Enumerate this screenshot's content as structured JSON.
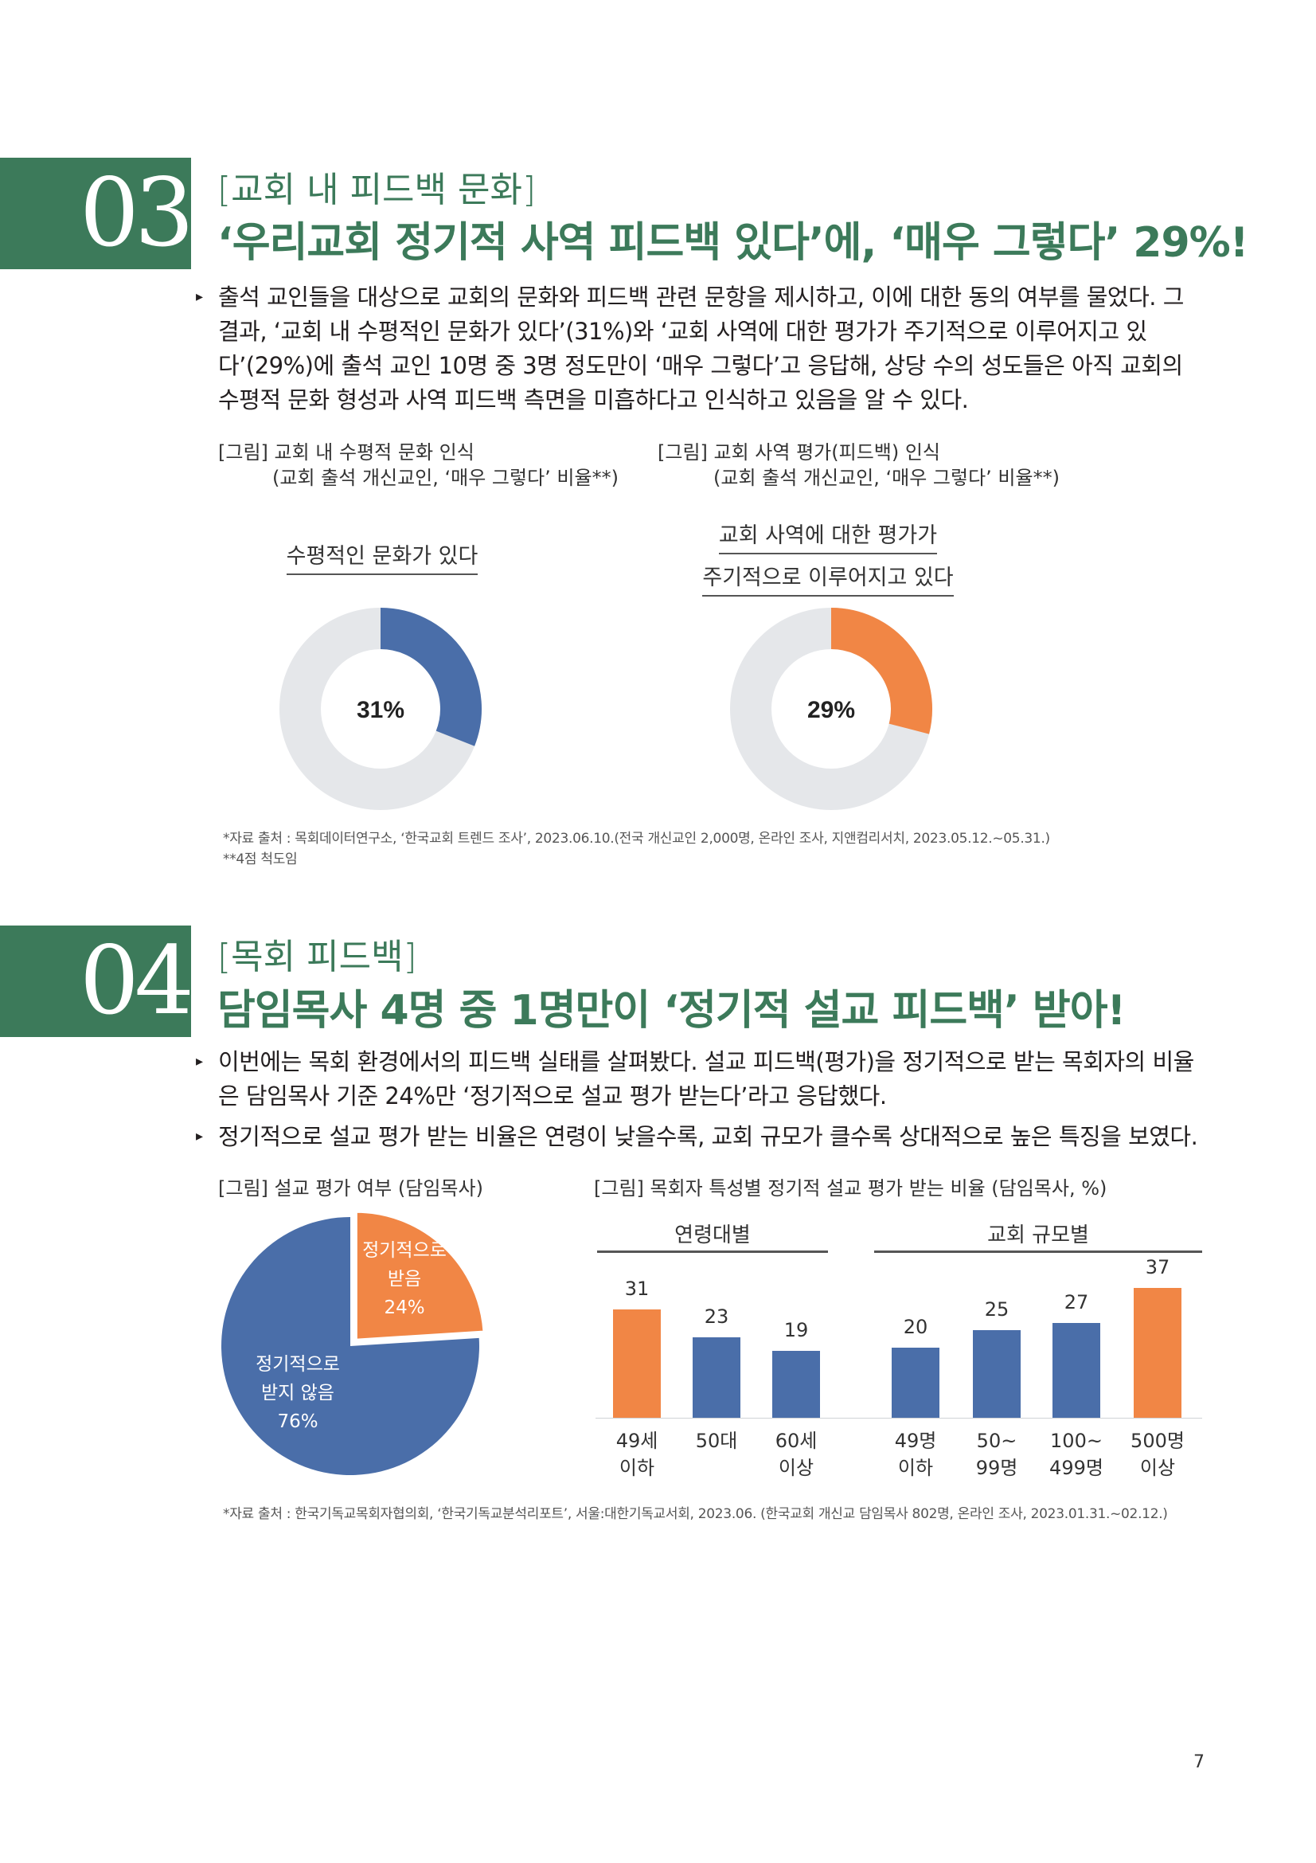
{
  "colors": {
    "green": "#3c7a5a",
    "blue": "#4a6ea9",
    "orange": "#f18645",
    "gray": "#e5e7ea"
  },
  "s03": {
    "number": "03",
    "subtitle": "[교회 내 피드백 문화]",
    "title": "‘우리교회 정기적 사역 피드백 있다’에, ‘매우 그렇다’ 29%!",
    "para": "출석 교인들을 대상으로 교회의 문화와 피드백 관련 문항을 제시하고, 이에 대한 동의 여부를 물었다. 그 결과, ‘교회 내 수평적인 문화가 있다’(31%)와 ‘교회 사역에 대한 평가가 주기적으로 이루어지고 있다’(29%)에 출석 교인 10명 중 3명 정도만이 ‘매우 그렇다’고 응답해, 상당 수의 성도들은 아직 교회의 수평적 문화 형성과 사역 피드백 측면을 미흡하다고 인식하고 있음을 알 수 있다.",
    "fig1_title": "[그림] 교회 내 수평적 문화 인식",
    "fig1_sub": "(교회 출석 개신교인, ‘매우 그렇다’ 비율**)",
    "fig2_title": "[그림] 교회 사역 평가(피드백) 인식",
    "fig2_sub": "(교회 출석 개신교인, ‘매우 그렇다’ 비율**)",
    "donut1_label": "수평적인 문화가 있다",
    "donut1_value": "31%",
    "donut2_label1": "교회 사역에 대한 평가가",
    "donut2_label2": "주기적으로 이루어지고 있다",
    "donut2_value": "29%",
    "source1": "*자료 출처 : 목회데이터연구소, ‘한국교회 트렌드 조사’, 2023.06.10.(전국 개신교인 2,000명, 온라인 조사, 지앤컴리서치, 2023.05.12.~05.31.)",
    "source2": "**4점 척도임"
  },
  "s04": {
    "number": "04",
    "subtitle": "[목회 피드백]",
    "title": "담임목사 4명 중 1명만이 ‘정기적 설교 피드백’ 받아!",
    "para1": "이번에는 목회 환경에서의 피드백 실태를 살펴봤다. 설교 피드백(평가)을 정기적으로 받는 목회자의 비율은 담임목사 기준 24%만 ‘정기적으로 설교 평가 받는다’라고 응답했다.",
    "para2": "정기적으로 설교 평가 받는 비율은 연령이 낮을수록, 교회 규모가 클수록 상대적으로 높은 특징을 보였다.",
    "fig3_title": "[그림] 설교 평가 여부 (담임목사)",
    "fig4_title": "[그림] 목회자 특성별 정기적 설교 평가 받는 비율 (담임목사, %)",
    "pie_a1": "정기적으로",
    "pie_a2": "받음",
    "pie_a3": "24%",
    "pie_b1": "정기적으로",
    "pie_b2": "받지 않음",
    "pie_b3": "76%",
    "group_age": "연령대별",
    "group_size": "교회 규모별",
    "source": "*자료 출처 : 한국기독교목회자협의회, ‘한국기독교분석리포트’, 서울:대한기독교서회, 2023.06. (한국교회 개신교 담임목사 802명, 온라인 조사, 2023.01.31.~02.12.)"
  },
  "chart_data": [
    {
      "type": "pie",
      "title": "[그림] 교회 내 수평적 문화 인식",
      "categories": [
        "수평적인 문화가 있다"
      ],
      "values": [
        31
      ]
    },
    {
      "type": "pie",
      "title": "[그림] 교회 사역 평가(피드백) 인식",
      "categories": [
        "교회 사역에 대한 평가가 주기적으로 이루어지고 있다"
      ],
      "values": [
        29
      ]
    },
    {
      "type": "pie",
      "title": "[그림] 설교 평가 여부 (담임목사)",
      "categories": [
        "정기적으로 받음",
        "정기적으로 받지 않음"
      ],
      "values": [
        24,
        76
      ]
    },
    {
      "type": "bar",
      "title": "[그림] 목회자 특성별 정기적 설교 평가 받는 비율 (담임목사, %)",
      "groups": [
        {
          "name": "연령대별",
          "categories": [
            "49세 이하",
            "50대",
            "60세 이상"
          ],
          "values": [
            31,
            23,
            19
          ],
          "tick1": [
            "49세",
            "50대",
            "60세"
          ],
          "tick2": [
            "이하",
            "",
            "이상"
          ],
          "highlight": [
            true,
            false,
            false
          ]
        },
        {
          "name": "교회 규모별",
          "categories": [
            "49명 이하",
            "50~99명",
            "100~499명",
            "500명 이상"
          ],
          "values": [
            20,
            25,
            27,
            37
          ],
          "tick1": [
            "49명",
            "50~",
            "100~",
            "500명"
          ],
          "tick2": [
            "이하",
            "99명",
            "499명",
            "이상"
          ],
          "highlight": [
            false,
            false,
            false,
            true
          ]
        }
      ]
    }
  ],
  "page_number": "7"
}
